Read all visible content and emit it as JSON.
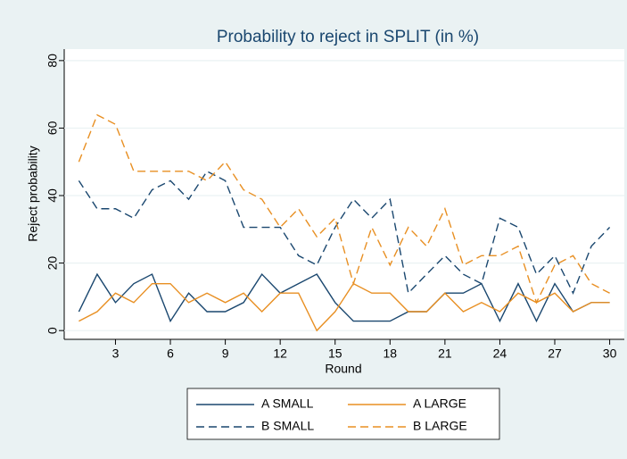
{
  "chart_data": {
    "type": "line",
    "title": "Probability to reject in SPLIT (in %)",
    "x_label": "Round",
    "y_label": "Reject probability",
    "x": [
      1,
      2,
      3,
      4,
      5,
      6,
      7,
      8,
      9,
      10,
      11,
      12,
      13,
      14,
      15,
      16,
      17,
      18,
      19,
      20,
      21,
      22,
      23,
      24,
      25,
      26,
      27,
      28,
      29,
      30
    ],
    "series": [
      {
        "name": "A SMALL",
        "color": "#1a476f",
        "dash": "solid",
        "values": [
          5.6,
          16.7,
          8.3,
          13.9,
          16.7,
          2.8,
          11.1,
          5.6,
          5.6,
          8.3,
          16.7,
          11.1,
          13.9,
          16.7,
          8.3,
          2.8,
          2.8,
          2.8,
          5.6,
          5.6,
          11.1,
          11.1,
          13.9,
          2.8,
          13.9,
          2.8,
          13.9,
          5.6,
          8.3,
          8.3
        ]
      },
      {
        "name": "A LARGE",
        "color": "#e88f22",
        "dash": "solid",
        "values": [
          2.8,
          5.6,
          11.1,
          8.3,
          13.9,
          13.9,
          8.3,
          11.1,
          8.3,
          11.1,
          5.6,
          11.1,
          11.1,
          0,
          5.6,
          13.9,
          11.1,
          11.1,
          5.6,
          5.6,
          11.1,
          5.6,
          8.3,
          5.6,
          11.1,
          8.3,
          11.1,
          5.6,
          8.3,
          8.3
        ]
      },
      {
        "name": "B SMALL",
        "color": "#1a476f",
        "dash": "dashed",
        "values": [
          44.4,
          36.1,
          36.1,
          33.3,
          41.7,
          44.4,
          38.9,
          47.2,
          44.4,
          30.6,
          30.6,
          30.6,
          22.2,
          19.4,
          30.6,
          38.9,
          33.3,
          38.9,
          11.1,
          16.7,
          22.2,
          16.7,
          13.9,
          33.3,
          30.6,
          16.7,
          22.2,
          11.1,
          25,
          30.6
        ]
      },
      {
        "name": "B LARGE",
        "color": "#e88f22",
        "dash": "dashed",
        "values": [
          50,
          63.9,
          61.1,
          47.2,
          47.2,
          47.2,
          47.2,
          44.4,
          50,
          41.7,
          38.9,
          30.6,
          36.1,
          27.8,
          33.3,
          13.9,
          30.6,
          19.4,
          30.6,
          25,
          36.1,
          19.4,
          22.2,
          22.2,
          25,
          8.3,
          19.4,
          22.2,
          13.9,
          11.1
        ]
      }
    ],
    "xlim": [
      0.2,
      30.8
    ],
    "xticks": [
      3,
      6,
      9,
      12,
      15,
      18,
      21,
      24,
      27,
      30
    ],
    "ylim": [
      -2.6,
      83.4
    ],
    "yticks": [
      0,
      20,
      40,
      60,
      80
    ],
    "grid": true,
    "legend": "bottom"
  }
}
